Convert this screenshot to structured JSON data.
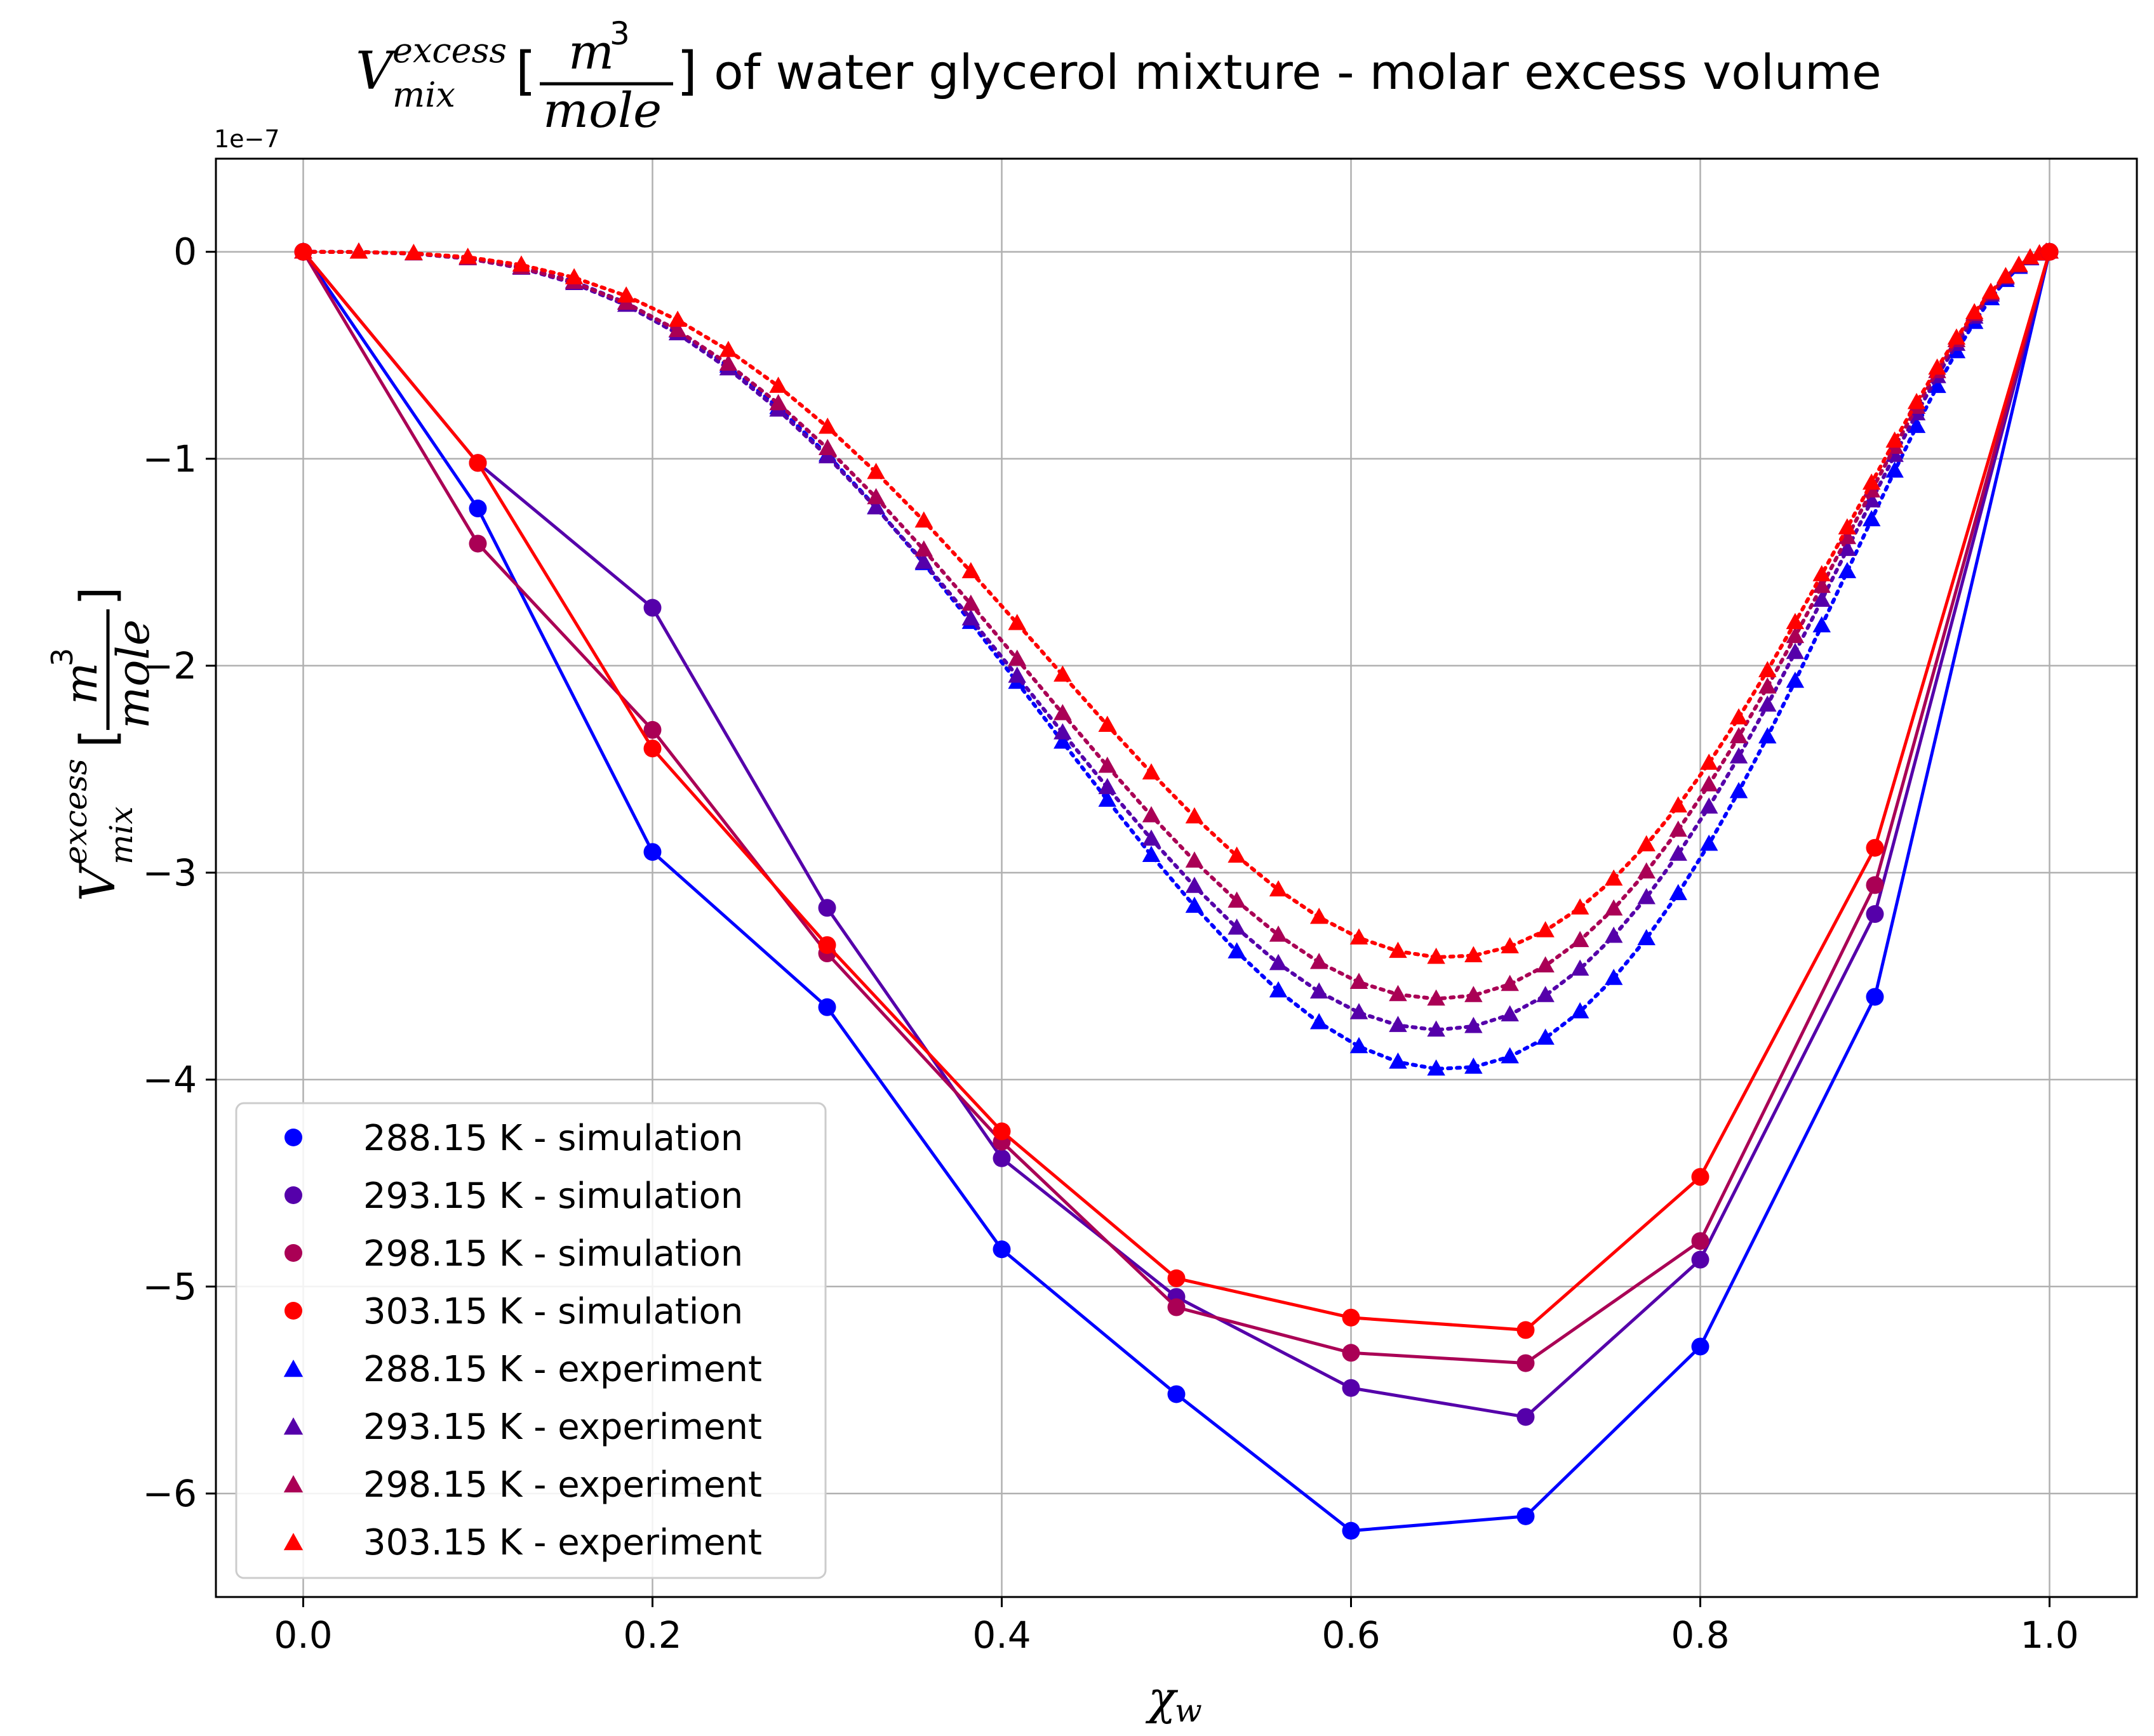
{
  "chart_data": {
    "type": "scatter",
    "title": {
      "symbol": "V",
      "sup": "excess",
      "sub": "mix",
      "open_bracket": "[",
      "numerator": "m",
      "numerator_power": "3",
      "denominator": "mole",
      "close_bracket": "]",
      "text": " of water glycerol mixture - molar excess volume"
    },
    "xlabel": {
      "symbol": "χ",
      "sub": "w"
    },
    "ylabel": {
      "symbol": "V",
      "sup": "excess",
      "sub": "mix",
      "numerator": "m",
      "numerator_power": "3",
      "denominator": "mole"
    },
    "y_offset_label": "1e−7",
    "xlim": [
      -0.05,
      1.05
    ],
    "ylim": [
      -6.5,
      0.45
    ],
    "y_scale": 1e-07,
    "xticks": [
      0.0,
      0.2,
      0.4,
      0.6,
      0.8,
      1.0
    ],
    "xtick_labels": [
      "0.0",
      "0.2",
      "0.4",
      "0.6",
      "0.8",
      "1.0"
    ],
    "yticks": [
      0,
      -1,
      -2,
      -3,
      -4,
      -5,
      -6
    ],
    "ytick_labels": [
      "0",
      "−1",
      "−2",
      "−3",
      "−4",
      "−5",
      "−6"
    ],
    "grid": true,
    "legend_position": "lower-left",
    "simulation_x": [
      0.0,
      0.1,
      0.2,
      0.3,
      0.4,
      0.5,
      0.6,
      0.7,
      0.8,
      0.9,
      1.0
    ],
    "series": [
      {
        "name": "288.15 K - simulation",
        "kind": "simulation",
        "color": "#0000ff",
        "values": [
          0,
          -1.24,
          -2.9,
          -3.65,
          -4.82,
          -5.52,
          -6.18,
          -6.11,
          -5.29,
          -3.6,
          0
        ]
      },
      {
        "name": "293.15 K - simulation",
        "kind": "simulation",
        "color": "#5500aa",
        "values": [
          0,
          -1.02,
          -1.72,
          -3.17,
          -4.38,
          -5.05,
          -5.49,
          -5.63,
          -4.87,
          -3.2,
          0
        ]
      },
      {
        "name": "298.15 K - simulation",
        "kind": "simulation",
        "color": "#aa0055",
        "values": [
          0,
          -1.41,
          -2.31,
          -3.39,
          -4.3,
          -5.1,
          -5.32,
          -5.37,
          -4.78,
          -3.06,
          0
        ]
      },
      {
        "name": "303.15 K - simulation",
        "kind": "simulation",
        "color": "#ff0000",
        "values": [
          0,
          -1.02,
          -2.4,
          -3.35,
          -4.25,
          -4.96,
          -5.15,
          -5.21,
          -4.47,
          -2.88,
          0
        ]
      },
      {
        "name": "288.15 K - experiment",
        "kind": "experiment",
        "color": "#0000ff",
        "min": -3.95,
        "x_at_min": 0.655,
        "skew": 1.8
      },
      {
        "name": "293.15 K - experiment",
        "kind": "experiment",
        "color": "#5500aa",
        "min": -3.76,
        "x_at_min": 0.65,
        "skew": 1.8
      },
      {
        "name": "298.15 K - experiment",
        "kind": "experiment",
        "color": "#aa0055",
        "min": -3.61,
        "x_at_min": 0.65,
        "skew": 1.8
      },
      {
        "name": "303.15 K - experiment",
        "kind": "experiment",
        "color": "#ff0000",
        "min": -3.41,
        "x_at_min": 0.655,
        "skew": 1.8
      }
    ]
  }
}
